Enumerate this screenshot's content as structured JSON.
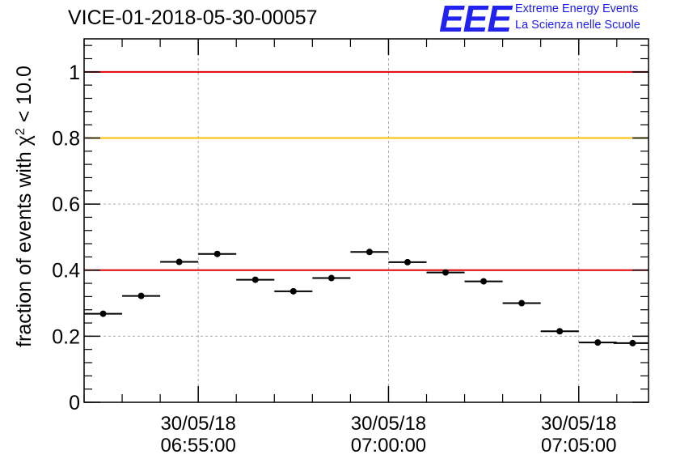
{
  "header": {
    "title": "VICE-01-2018-05-30-00057",
    "logo_letters": "EEE",
    "logo_line1": "Extreme Energy Events",
    "logo_line2": "La Scienza nelle Scuole"
  },
  "colors": {
    "ref_red": "#e00000",
    "ref_yellow": "#ffc000",
    "points": "#000000",
    "grid": "#aaaaaa",
    "logo": "#2222ee"
  },
  "chart_data": {
    "type": "scatter",
    "title": "VICE-01-2018-05-30-00057",
    "ylabel_prefix": "fraction of events with ",
    "ylabel_symbol": "χ",
    "ylabel_sup": "2",
    "ylabel_suffix": " < 10.0",
    "ylim": [
      0,
      1.1
    ],
    "yticks": [
      {
        "value": 0,
        "label": "0"
      },
      {
        "value": 0.2,
        "label": "0.2"
      },
      {
        "value": 0.4,
        "label": "0.4"
      },
      {
        "value": 0.6,
        "label": "0.6"
      },
      {
        "value": 0.8,
        "label": "0.8"
      },
      {
        "value": 1,
        "label": "1"
      }
    ],
    "xlim": [
      "06:52:00",
      "07:06:50"
    ],
    "xticks": [
      {
        "time": "06:55:00",
        "label_date": "30/05/18",
        "label_time": "06:55:00"
      },
      {
        "time": "07:00:00",
        "label_date": "30/05/18",
        "label_time": "07:00:00"
      },
      {
        "time": "07:05:00",
        "label_date": "30/05/18",
        "label_time": "07:05:00"
      }
    ],
    "bin_width_min": 1,
    "grid": true,
    "reference_lines": [
      {
        "value": 1.0,
        "color": "#e00000"
      },
      {
        "value": 0.8,
        "color": "#ffc000"
      },
      {
        "value": 0.4,
        "color": "#e00000"
      }
    ],
    "points": [
      {
        "time": "06:52:30",
        "value": 0.268
      },
      {
        "time": "06:53:30",
        "value": 0.322
      },
      {
        "time": "06:54:30",
        "value": 0.425
      },
      {
        "time": "06:55:30",
        "value": 0.449
      },
      {
        "time": "06:56:30",
        "value": 0.371
      },
      {
        "time": "06:57:30",
        "value": 0.336
      },
      {
        "time": "06:58:30",
        "value": 0.376
      },
      {
        "time": "06:59:30",
        "value": 0.455
      },
      {
        "time": "07:00:30",
        "value": 0.424
      },
      {
        "time": "07:01:30",
        "value": 0.393
      },
      {
        "time": "07:02:30",
        "value": 0.366
      },
      {
        "time": "07:03:30",
        "value": 0.3
      },
      {
        "time": "07:04:30",
        "value": 0.215
      },
      {
        "time": "07:05:30",
        "value": 0.181
      },
      {
        "time": "07:06:25",
        "value": 0.179
      }
    ]
  }
}
